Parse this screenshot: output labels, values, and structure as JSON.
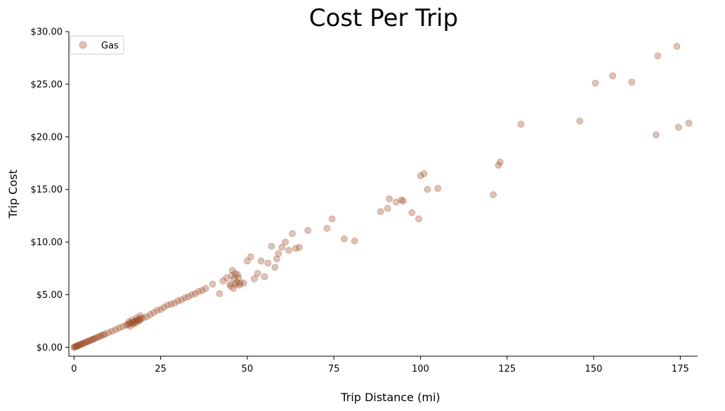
{
  "chart_data": {
    "type": "scatter",
    "title": "Cost Per Trip",
    "xlabel": "Trip Distance (mi)",
    "ylabel": "Trip Cost",
    "xlim": [
      -1.5,
      180
    ],
    "ylim": [
      -0.85,
      30
    ],
    "xticks": [
      0,
      25,
      50,
      75,
      100,
      125,
      150,
      175
    ],
    "yticks": [
      0,
      5,
      10,
      15,
      20,
      25,
      30
    ],
    "ytick_labels": [
      "$0.00",
      "$5.00",
      "$10.00",
      "$15.00",
      "$20.00",
      "$25.00",
      "$30.00"
    ],
    "grid": false,
    "legend": {
      "position": "top-left",
      "entries": [
        "Gas"
      ]
    },
    "series": [
      {
        "name": "Gas",
        "color": "#a0522d",
        "x": [
          0,
          0.2,
          0.4,
          0.6,
          0.8,
          1,
          1.2,
          1.5,
          1.8,
          2,
          2.3,
          2.6,
          3,
          3.3,
          3.6,
          4,
          4.4,
          4.8,
          5.2,
          5.6,
          6,
          6.5,
          7,
          7.5,
          8,
          8.5,
          9,
          10,
          11,
          12,
          13,
          14,
          15,
          15.5,
          16,
          16.5,
          17,
          17.3,
          17.6,
          18,
          18.3,
          18.6,
          19,
          19.3,
          16.2,
          17.1,
          18.1,
          19.1,
          15.8,
          16.8,
          17.8,
          18.8,
          20,
          21,
          22,
          23,
          24,
          25,
          26,
          27,
          28,
          29,
          30,
          31,
          32,
          33,
          34,
          35,
          36,
          37,
          38,
          40,
          42,
          43,
          44,
          45,
          45.5,
          46,
          46.5,
          47,
          47.5,
          48,
          45.2,
          46.2,
          47.2,
          45.7,
          46.7,
          47.7,
          49,
          50,
          51,
          52,
          53,
          54,
          55,
          56,
          57,
          58,
          58.5,
          59,
          60,
          61,
          62,
          63,
          64,
          65,
          67.5,
          73,
          74.5,
          78,
          81,
          88.5,
          90.5,
          91,
          93,
          94.5,
          95,
          97.5,
          99.5,
          100,
          101,
          102,
          105,
          121,
          122.5,
          123,
          129,
          146,
          150.5,
          155.5,
          161,
          168,
          168.5,
          174,
          174.5,
          177.5
        ],
        "y": [
          0,
          0.03,
          0.06,
          0.08,
          0.11,
          0.14,
          0.17,
          0.21,
          0.25,
          0.28,
          0.32,
          0.36,
          0.42,
          0.46,
          0.5,
          0.56,
          0.61,
          0.67,
          0.73,
          0.78,
          0.84,
          0.91,
          0.98,
          1.05,
          1.12,
          1.19,
          1.26,
          1.4,
          1.54,
          1.68,
          1.82,
          1.96,
          2.1,
          2.17,
          2.24,
          2.31,
          2.38,
          2.42,
          2.46,
          2.52,
          2.56,
          2.6,
          2.66,
          2.7,
          2.0,
          2.2,
          2.8,
          3.0,
          2.4,
          2.6,
          2.3,
          2.5,
          2.8,
          2.9,
          3.1,
          3.3,
          3.5,
          3.6,
          3.8,
          4.0,
          4.1,
          4.2,
          4.4,
          4.5,
          4.7,
          4.8,
          5.0,
          5.1,
          5.3,
          5.4,
          5.6,
          6.0,
          5.1,
          6.3,
          6.6,
          6.0,
          6.8,
          5.6,
          7.0,
          6.2,
          6.6,
          6.1,
          5.8,
          6.5,
          6.9,
          7.3,
          6.0,
          5.9,
          6.1,
          8.2,
          8.6,
          6.5,
          7.0,
          8.2,
          6.7,
          8.0,
          9.6,
          7.6,
          8.4,
          8.9,
          9.5,
          10.0,
          9.2,
          10.8,
          9.4,
          9.5,
          11.1,
          11.3,
          12.2,
          10.3,
          10.1,
          12.9,
          13.2,
          14.1,
          13.8,
          14.0,
          13.9,
          12.8,
          12.2,
          16.3,
          16.5,
          15.0,
          15.1,
          14.5,
          17.3,
          17.6,
          21.2,
          21.5,
          25.1,
          25.8,
          25.2,
          20.2,
          27.7,
          28.6,
          20.9,
          21.3
        ]
      }
    ]
  }
}
